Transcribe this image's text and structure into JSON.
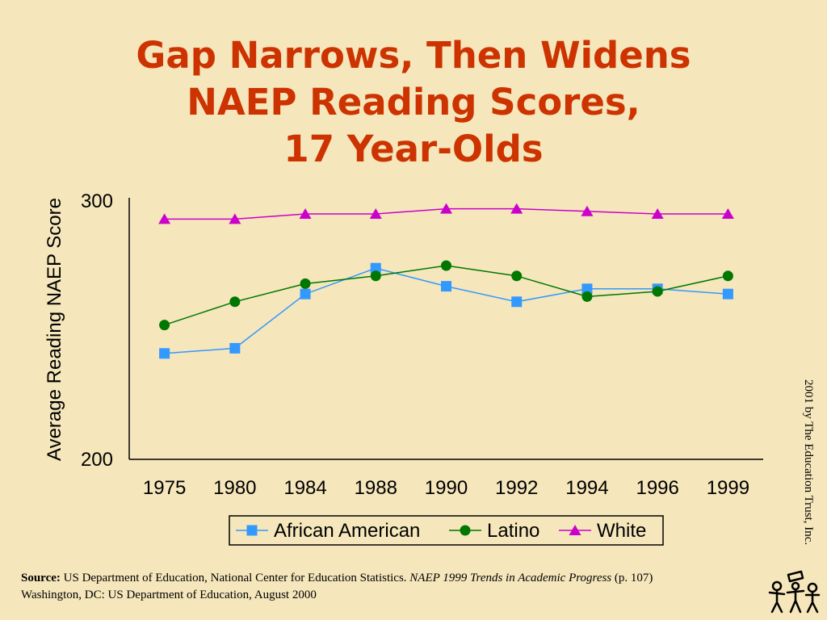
{
  "title_lines": [
    "Gap Narrows, Then Widens",
    "NAEP Reading Scores,",
    "17 Year-Olds"
  ],
  "credit": "2001 by The Education Trust, Inc.",
  "source": {
    "label": "Source:",
    "text1": "US Department of Education, National Center for Education Statistics.",
    "publication": "NAEP 1999 Trends in Academic Progress",
    "text2": "(p. 107)",
    "line2": "Washington, DC: US  Department of Education, August 2000"
  },
  "colors": {
    "background": "#f5e6bb",
    "title": "#cc3300",
    "african_american": "#3399ff",
    "latino": "#007700",
    "white": "#cc00cc"
  },
  "chart_data": {
    "type": "line",
    "title": "Gap Narrows, Then Widens NAEP Reading Scores, 17 Year-Olds",
    "xlabel": "",
    "ylabel": "Average Reading NAEP Score",
    "categories": [
      "1975",
      "1980",
      "1984",
      "1988",
      "1990",
      "1992",
      "1994",
      "1996",
      "1999"
    ],
    "ylim": [
      200,
      300
    ],
    "yticks": [
      200,
      300
    ],
    "grid": false,
    "legend_position": "bottom",
    "series": [
      {
        "name": "African American",
        "marker": "square",
        "color": "#3399ff",
        "values": [
          241,
          243,
          264,
          274,
          267,
          261,
          266,
          266,
          264
        ]
      },
      {
        "name": "Latino",
        "marker": "circle",
        "color": "#007700",
        "values": [
          252,
          261,
          268,
          271,
          275,
          271,
          263,
          265,
          271
        ]
      },
      {
        "name": "White",
        "marker": "triangle",
        "color": "#cc00cc",
        "values": [
          293,
          293,
          295,
          295,
          297,
          297,
          296,
          295,
          295
        ]
      }
    ]
  }
}
